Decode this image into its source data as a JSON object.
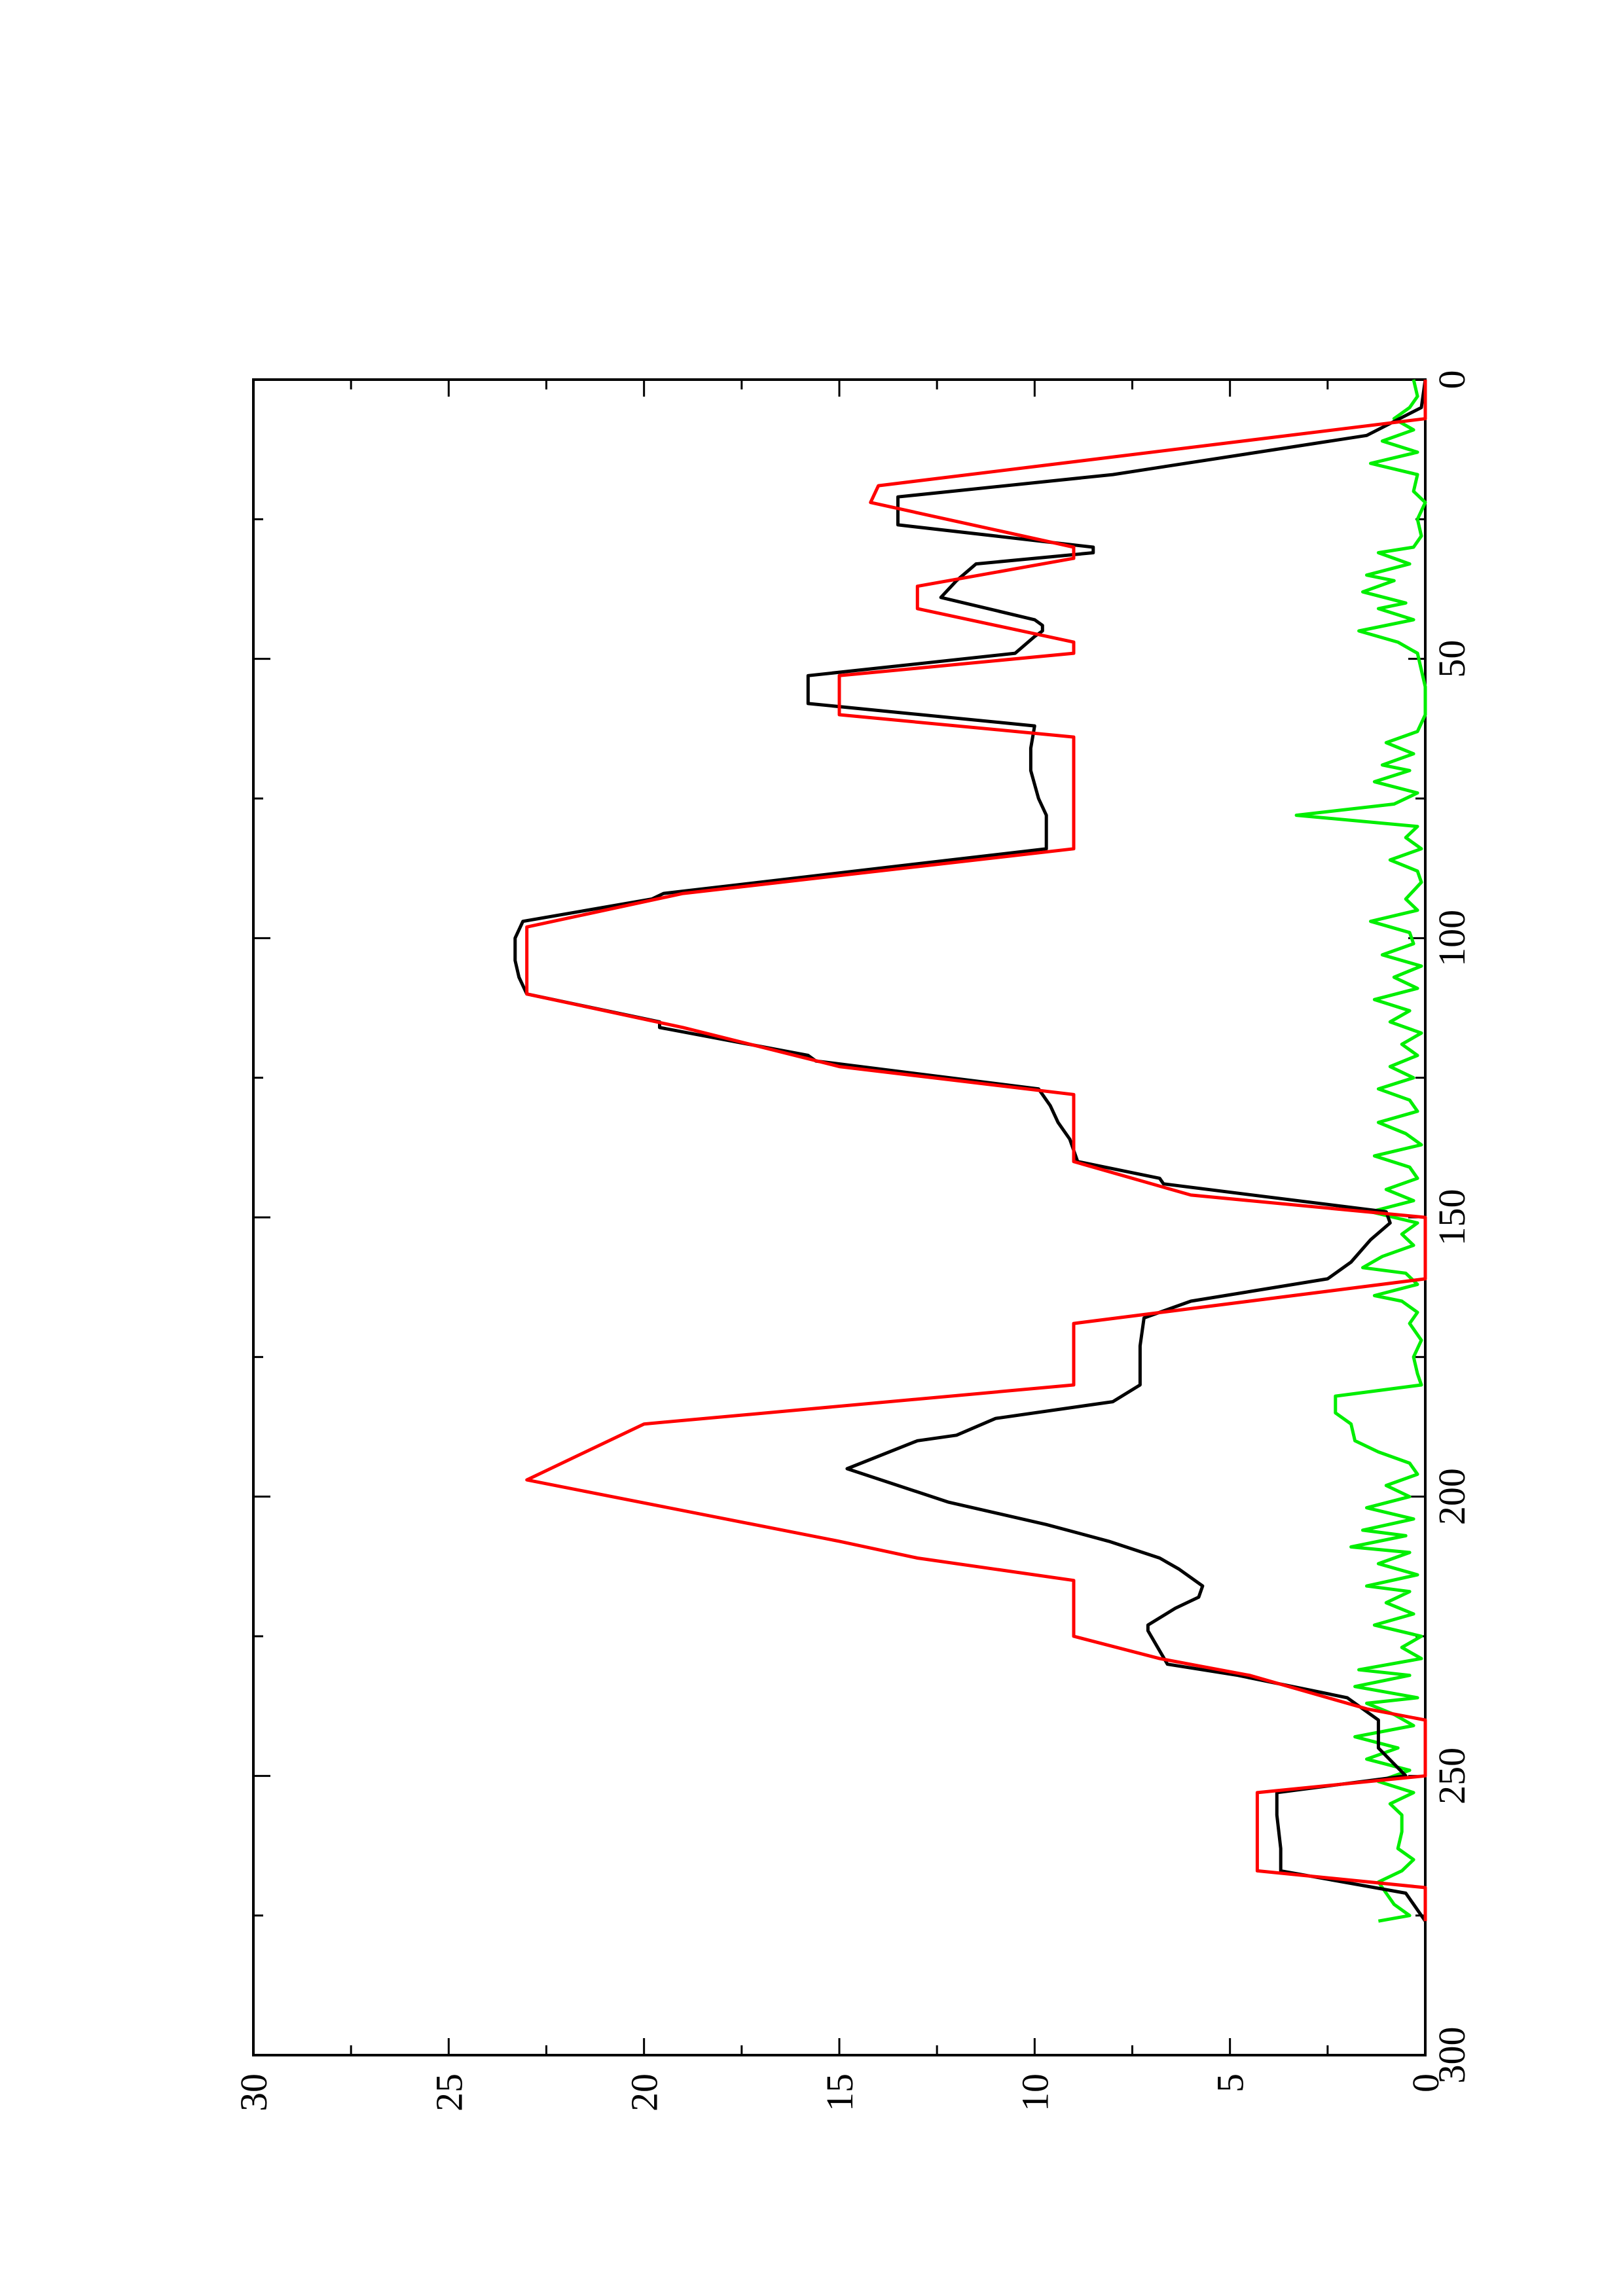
{
  "chart_data": {
    "type": "line",
    "orientation": "rotated-90-ccw",
    "title": "",
    "xlabel": "",
    "ylabel": "",
    "xlim": [
      0,
      300
    ],
    "ylim": [
      0,
      30
    ],
    "x_ticks": [
      0,
      50,
      100,
      150,
      200,
      250,
      300
    ],
    "x_minor_ticks": [
      25,
      75,
      125,
      175,
      225,
      275
    ],
    "y_ticks": [
      0,
      5,
      10,
      15,
      20,
      25,
      30
    ],
    "y_minor_ticks": [
      2.5,
      7.5,
      12.5,
      17.5,
      22.5,
      27.5
    ],
    "grid": false,
    "legend": "none",
    "series": [
      {
        "color": "#ff0000",
        "points": [
          [
            0,
            0
          ],
          [
            7,
            0
          ],
          [
            19,
            14
          ],
          [
            22,
            14.2
          ],
          [
            30,
            9
          ],
          [
            32,
            9
          ],
          [
            37,
            13
          ],
          [
            41,
            13
          ],
          [
            47,
            9
          ],
          [
            49,
            9
          ],
          [
            53,
            15
          ],
          [
            60,
            15
          ],
          [
            64,
            9
          ],
          [
            84,
            9
          ],
          [
            92,
            19
          ],
          [
            98,
            23
          ],
          [
            110,
            23
          ],
          [
            116,
            19
          ],
          [
            123,
            15
          ],
          [
            128,
            9
          ],
          [
            140,
            9
          ],
          [
            146,
            6
          ],
          [
            150,
            0
          ],
          [
            161,
            0
          ],
          [
            169,
            9
          ],
          [
            180,
            9
          ],
          [
            187,
            20
          ],
          [
            197,
            23
          ],
          [
            208,
            15
          ],
          [
            211,
            13
          ],
          [
            215,
            9
          ],
          [
            225,
            9
          ],
          [
            229,
            6.8
          ],
          [
            232,
            4.5
          ],
          [
            238,
            1.5
          ],
          [
            240,
            0
          ],
          [
            250,
            0
          ],
          [
            253,
            4.3
          ],
          [
            267,
            4.3
          ],
          [
            270,
            0
          ],
          [
            276,
            0
          ]
        ]
      },
      {
        "color": "#000000",
        "points": [
          [
            0,
            0
          ],
          [
            5,
            0.1
          ],
          [
            10,
            1.5
          ],
          [
            17,
            8
          ],
          [
            21,
            13.5
          ],
          [
            26,
            13.5
          ],
          [
            30,
            8.5
          ],
          [
            31,
            8.5
          ],
          [
            33,
            11.5
          ],
          [
            36,
            12
          ],
          [
            39,
            12.4
          ],
          [
            43,
            10
          ],
          [
            44,
            9.8
          ],
          [
            45,
            9.8
          ],
          [
            46,
            10
          ],
          [
            49,
            10.5
          ],
          [
            53,
            15.8
          ],
          [
            58,
            15.8
          ],
          [
            62,
            10
          ],
          [
            66,
            10.1
          ],
          [
            70,
            10.1
          ],
          [
            75,
            9.9
          ],
          [
            78,
            9.7
          ],
          [
            84,
            9.7
          ],
          [
            92,
            19.5
          ],
          [
            93,
            19.8
          ],
          [
            97,
            23.1
          ],
          [
            100,
            23.3
          ],
          [
            104,
            23.3
          ],
          [
            107,
            23.2
          ],
          [
            110,
            23
          ],
          [
            115,
            19.6
          ],
          [
            116,
            19.6
          ],
          [
            121,
            15.8
          ],
          [
            122,
            15.6
          ],
          [
            127,
            9.9
          ],
          [
            130,
            9.6
          ],
          [
            133,
            9.4
          ],
          [
            136,
            9.1
          ],
          [
            140,
            8.9
          ],
          [
            143,
            6.8
          ],
          [
            144,
            6.7
          ],
          [
            149,
            1
          ],
          [
            151,
            0.9
          ],
          [
            154,
            1.4
          ],
          [
            158,
            1.9
          ],
          [
            161,
            2.5
          ],
          [
            165,
            6
          ],
          [
            168,
            7.2
          ],
          [
            173,
            7.3
          ],
          [
            180,
            7.3
          ],
          [
            183,
            8
          ],
          [
            186,
            11
          ],
          [
            189,
            12
          ],
          [
            190,
            13
          ],
          [
            195,
            14.8
          ],
          [
            201,
            12.2
          ],
          [
            205,
            9.7
          ],
          [
            208,
            8.1
          ],
          [
            211,
            6.8
          ],
          [
            213,
            6.3
          ],
          [
            216,
            5.7
          ],
          [
            218,
            5.8
          ],
          [
            220,
            6.4
          ],
          [
            223,
            7.1
          ],
          [
            224,
            7.1
          ],
          [
            230,
            6.6
          ],
          [
            232,
            4.8
          ],
          [
            236,
            2
          ],
          [
            240,
            1.2
          ],
          [
            245,
            1.2
          ],
          [
            250,
            0.5
          ],
          [
            253,
            3.8
          ],
          [
            257,
            3.8
          ],
          [
            263,
            3.7
          ],
          [
            267,
            3.7
          ],
          [
            271,
            0.5
          ],
          [
            276,
            0
          ]
        ]
      },
      {
        "color": "#00ee00",
        "points": [
          [
            0,
            0.3
          ],
          [
            3,
            0.2
          ],
          [
            5,
            0.4
          ],
          [
            7,
            0.8
          ],
          [
            9,
            0.3
          ],
          [
            11,
            1.1
          ],
          [
            13,
            0.2
          ],
          [
            15,
            1.4
          ],
          [
            17,
            0.2
          ],
          [
            20,
            0.3
          ],
          [
            22,
            0
          ],
          [
            25,
            0.2
          ],
          [
            28,
            0.1
          ],
          [
            30,
            0.3
          ],
          [
            31,
            1.2
          ],
          [
            33,
            0.4
          ],
          [
            35,
            1.5
          ],
          [
            36,
            0.8
          ],
          [
            38,
            1.6
          ],
          [
            40,
            0.5
          ],
          [
            41,
            1.2
          ],
          [
            43,
            0.3
          ],
          [
            45,
            1.7
          ],
          [
            47,
            0.7
          ],
          [
            49,
            0.2
          ],
          [
            52,
            0.1
          ],
          [
            55,
            0
          ],
          [
            60,
            0
          ],
          [
            63,
            0.2
          ],
          [
            65,
            1
          ],
          [
            67,
            0.3
          ],
          [
            69,
            1.1
          ],
          [
            70,
            0.4
          ],
          [
            72,
            1.3
          ],
          [
            74,
            0.2
          ],
          [
            76,
            0.8
          ],
          [
            78,
            3.3
          ],
          [
            80,
            0.2
          ],
          [
            82,
            0.5
          ],
          [
            84,
            0.1
          ],
          [
            86,
            0.9
          ],
          [
            88,
            0.2
          ],
          [
            90,
            0.1
          ],
          [
            93,
            0.5
          ],
          [
            95,
            0.2
          ],
          [
            97,
            1.4
          ],
          [
            99,
            0.4
          ],
          [
            101,
            0.3
          ],
          [
            103,
            1.1
          ],
          [
            105,
            0.1
          ],
          [
            107,
            0.8
          ],
          [
            109,
            0.2
          ],
          [
            111,
            1.3
          ],
          [
            113,
            0.4
          ],
          [
            115,
            0.9
          ],
          [
            117,
            0.1
          ],
          [
            119,
            0.6
          ],
          [
            121,
            0.2
          ],
          [
            123,
            0.9
          ],
          [
            125,
            0.3
          ],
          [
            127,
            1.2
          ],
          [
            129,
            0.4
          ],
          [
            131,
            0.2
          ],
          [
            133,
            1.2
          ],
          [
            135,
            0.5
          ],
          [
            137,
            0.1
          ],
          [
            139,
            1.3
          ],
          [
            141,
            0.4
          ],
          [
            143,
            0.2
          ],
          [
            145,
            1
          ],
          [
            147,
            0.3
          ],
          [
            149,
            1.4
          ],
          [
            151,
            0.2
          ],
          [
            153,
            0.6
          ],
          [
            155,
            0.3
          ],
          [
            157,
            1.1
          ],
          [
            159,
            1.6
          ],
          [
            160,
            0.5
          ],
          [
            162,
            0.2
          ],
          [
            164,
            1.3
          ],
          [
            165,
            0.6
          ],
          [
            167,
            0.2
          ],
          [
            169,
            0.4
          ],
          [
            172,
            0.1
          ],
          [
            175,
            0.3
          ],
          [
            178,
            0.2
          ],
          [
            180,
            0.1
          ],
          [
            182,
            2.3
          ],
          [
            185,
            2.3
          ],
          [
            187,
            1.9
          ],
          [
            190,
            1.8
          ],
          [
            192,
            1.2
          ],
          [
            194,
            0.4
          ],
          [
            196,
            0.2
          ],
          [
            198,
            1
          ],
          [
            200,
            0.4
          ],
          [
            202,
            1.5
          ],
          [
            204,
            0.3
          ],
          [
            206,
            1.6
          ],
          [
            207,
            0.5
          ],
          [
            209,
            1.9
          ],
          [
            210,
            0.4
          ],
          [
            212,
            1.2
          ],
          [
            214,
            0.2
          ],
          [
            216,
            1.5
          ],
          [
            217,
            0.4
          ],
          [
            219,
            1
          ],
          [
            221,
            0.3
          ],
          [
            223,
            1.3
          ],
          [
            225,
            0.1
          ],
          [
            227,
            0.6
          ],
          [
            229,
            0.1
          ],
          [
            231,
            1.7
          ],
          [
            232,
            0.4
          ],
          [
            234,
            1.8
          ],
          [
            236,
            0.2
          ],
          [
            237,
            1.5
          ],
          [
            239,
            0.8
          ],
          [
            241,
            0.3
          ],
          [
            243,
            1.8
          ],
          [
            245,
            0.7
          ],
          [
            247,
            1.5
          ],
          [
            249,
            0.4
          ],
          [
            251,
            1.2
          ],
          [
            253,
            0.3
          ],
          [
            255,
            0.9
          ],
          [
            257,
            0.6
          ],
          [
            260,
            0.6
          ],
          [
            263,
            0.7
          ],
          [
            265,
            0.3
          ],
          [
            267,
            0.6
          ],
          [
            269,
            1.2
          ],
          [
            271,
            1
          ],
          [
            273,
            0.8
          ],
          [
            275,
            0.4
          ],
          [
            276,
            1.2
          ]
        ]
      }
    ]
  }
}
